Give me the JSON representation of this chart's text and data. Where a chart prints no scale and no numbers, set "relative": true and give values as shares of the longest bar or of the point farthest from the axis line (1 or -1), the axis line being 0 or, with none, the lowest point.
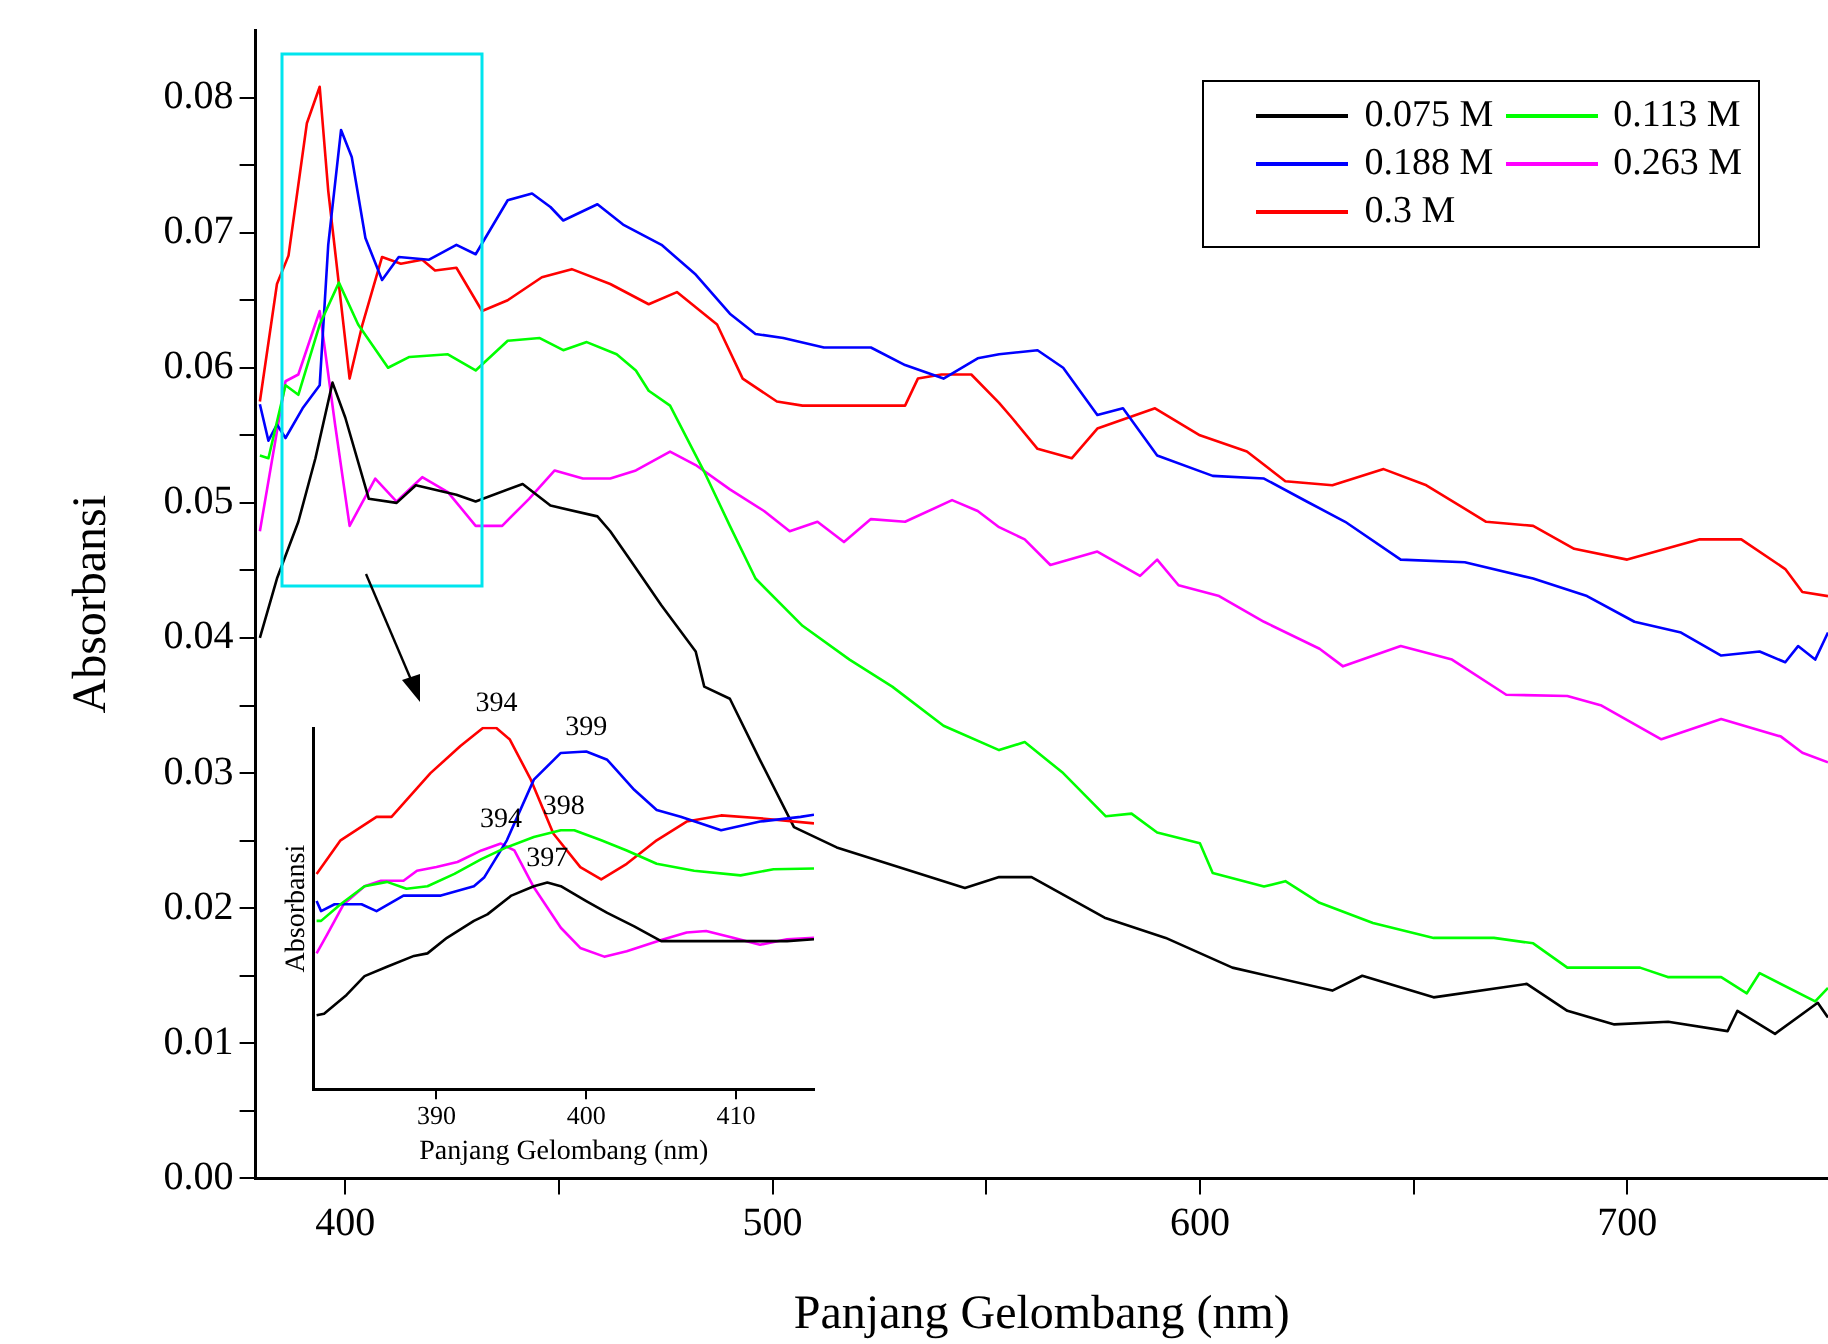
{
  "chart_data": [
    {
      "type": "line",
      "xlabel": "Panjang Gelombang (nm)",
      "ylabel": "Absorbansi",
      "xlim": [
        379,
        747
      ],
      "xticks": [
        400,
        {
          "value": 450,
          "label": null
        },
        500,
        {
          "value": 550,
          "label": null
        },
        600,
        {
          "value": 650,
          "label": null
        },
        700
      ],
      "ylim": [
        0,
        0.085
      ],
      "yticks": [
        {
          "value": 0,
          "label": "0.00"
        },
        {
          "value": 0.005,
          "label": null
        },
        0.01,
        {
          "value": 0.015,
          "label": null
        },
        0.02,
        {
          "value": 0.025,
          "label": null
        },
        0.03,
        {
          "value": 0.035,
          "label": null
        },
        0.04,
        {
          "value": 0.045,
          "label": null
        },
        0.05,
        {
          "value": 0.055,
          "label": null
        },
        0.06,
        {
          "value": 0.065,
          "label": null
        },
        0.07,
        {
          "value": 0.075,
          "label": null
        },
        0.08
      ],
      "grid": false,
      "legend": "top right",
      "marker": "none",
      "line_style": "solid",
      "series": [
        {
          "name": "0.075 M",
          "color": "#000000",
          "x": [
            380,
            384,
            389,
            393,
            397,
            400,
            405.5,
            412,
            416.5,
            426,
            430.5,
            441.5,
            448,
            459,
            462,
            466.6,
            474,
            482,
            484,
            490,
            497,
            505,
            515,
            530,
            545,
            553,
            560.6,
            577.7,
            592,
            607.6,
            631,
            638,
            654.7,
            676.5,
            686,
            697,
            709.6,
            723.5,
            725.8,
            734.6,
            744.6,
            747
          ],
          "values": [
            0.04,
            0.0444,
            0.0486,
            0.0533,
            0.0589,
            0.0563,
            0.0503,
            0.05,
            0.0513,
            0.0506,
            0.0501,
            0.0514,
            0.0498,
            0.049,
            0.0479,
            0.0458,
            0.0424,
            0.039,
            0.0364,
            0.0355,
            0.031,
            0.026,
            0.0245,
            0.023,
            0.0215,
            0.0223,
            0.0223,
            0.0193,
            0.0178,
            0.0156,
            0.0139,
            0.015,
            0.0134,
            0.0144,
            0.0124,
            0.0114,
            0.0116,
            0.0109,
            0.0124,
            0.0107,
            0.013,
            0.0119
          ]
        },
        {
          "name": "0.113 M",
          "color": "#00ff00",
          "x": [
            380,
            382,
            386,
            389,
            394,
            398.5,
            403,
            410,
            415,
            424,
            430.5,
            438,
            445.5,
            451,
            456.5,
            463.5,
            468,
            471,
            476,
            484,
            490,
            496,
            507,
            518,
            528,
            540,
            553,
            559,
            568,
            578,
            584,
            590,
            600,
            603,
            615,
            620,
            628,
            640.5,
            654.7,
            668.8,
            678,
            686,
            703,
            709.5,
            722,
            728,
            731,
            744,
            747
          ],
          "values": [
            0.0535,
            0.0533,
            0.0587,
            0.058,
            0.0632,
            0.0663,
            0.0632,
            0.06,
            0.0608,
            0.061,
            0.0598,
            0.062,
            0.0622,
            0.0613,
            0.0619,
            0.061,
            0.0598,
            0.0583,
            0.0572,
            0.0523,
            0.0483,
            0.0444,
            0.0409,
            0.0384,
            0.0364,
            0.0335,
            0.0317,
            0.0323,
            0.03,
            0.0268,
            0.027,
            0.0256,
            0.0248,
            0.0226,
            0.0216,
            0.022,
            0.0204,
            0.0189,
            0.0178,
            0.0178,
            0.0174,
            0.0156,
            0.0156,
            0.0149,
            0.0149,
            0.0137,
            0.0152,
            0.0131,
            0.0141
          ]
        },
        {
          "name": "0.188 M",
          "color": "#0000ff",
          "x": [
            380,
            382,
            384,
            386,
            390,
            394,
            396,
            399,
            401.5,
            404.7,
            408.6,
            412.5,
            419.6,
            426,
            430.5,
            438,
            443.7,
            448,
            451,
            459,
            465,
            474,
            482,
            490,
            496,
            502.5,
            512,
            523,
            531,
            540,
            548,
            553,
            562,
            568,
            576,
            582,
            590,
            603,
            615,
            625,
            634,
            647,
            662,
            678,
            690.6,
            701.7,
            712.6,
            722,
            731,
            737,
            740,
            744,
            747
          ],
          "values": [
            0.0573,
            0.0546,
            0.0558,
            0.0548,
            0.057,
            0.0587,
            0.0691,
            0.0776,
            0.0756,
            0.0696,
            0.0665,
            0.0682,
            0.068,
            0.0691,
            0.0684,
            0.0724,
            0.0729,
            0.0719,
            0.0709,
            0.0721,
            0.0706,
            0.0691,
            0.0669,
            0.064,
            0.0625,
            0.0622,
            0.0615,
            0.0615,
            0.0602,
            0.0592,
            0.0607,
            0.061,
            0.0613,
            0.06,
            0.0565,
            0.057,
            0.0535,
            0.052,
            0.0518,
            0.0501,
            0.0486,
            0.0458,
            0.0456,
            0.0444,
            0.0431,
            0.0412,
            0.0404,
            0.0387,
            0.039,
            0.0382,
            0.0394,
            0.0384,
            0.0404
          ]
        },
        {
          "name": "0.263 M",
          "color": "#ff00ff",
          "x": [
            380,
            386,
            389,
            394,
            397.6,
            401,
            407,
            412,
            418,
            424,
            430.5,
            436.7,
            443,
            449,
            455.6,
            462,
            468,
            476,
            482,
            490,
            498,
            504,
            510.5,
            516.7,
            523,
            531,
            542,
            548,
            553,
            559,
            565,
            576,
            586,
            590,
            595,
            604.5,
            615,
            628,
            633.5,
            647,
            659,
            671.7,
            686,
            694,
            708,
            722,
            736,
            741,
            747
          ],
          "values": [
            0.0479,
            0.059,
            0.0595,
            0.0642,
            0.0558,
            0.0483,
            0.0518,
            0.0501,
            0.0519,
            0.0508,
            0.0483,
            0.0483,
            0.0503,
            0.0524,
            0.0518,
            0.0518,
            0.0524,
            0.0538,
            0.0528,
            0.051,
            0.0494,
            0.0479,
            0.0486,
            0.0471,
            0.0488,
            0.0486,
            0.0502,
            0.0494,
            0.0482,
            0.0473,
            0.0454,
            0.0464,
            0.0446,
            0.0458,
            0.0439,
            0.0431,
            0.0412,
            0.0392,
            0.0379,
            0.0394,
            0.0384,
            0.0358,
            0.0357,
            0.035,
            0.0325,
            0.034,
            0.0327,
            0.0315,
            0.0308
          ]
        },
        {
          "name": "0.3 M",
          "color": "#ff0000",
          "x": [
            380,
            384,
            386.7,
            391,
            394,
            396,
            401,
            404,
            408.6,
            413,
            418,
            421,
            426,
            432,
            438,
            446,
            453,
            462,
            471,
            477.6,
            487,
            493,
            501,
            507,
            523,
            531,
            534,
            539.5,
            546.5,
            553,
            556,
            562,
            570,
            576,
            589.5,
            600,
            611,
            620,
            631,
            643,
            653,
            667,
            678,
            687.6,
            700,
            717,
            726.7,
            737,
            741,
            747
          ],
          "values": [
            0.0575,
            0.0662,
            0.0683,
            0.0781,
            0.0808,
            0.0731,
            0.0592,
            0.0632,
            0.0682,
            0.0677,
            0.068,
            0.0672,
            0.0674,
            0.0642,
            0.065,
            0.0667,
            0.0673,
            0.0662,
            0.0647,
            0.0656,
            0.0632,
            0.0592,
            0.0575,
            0.0572,
            0.0572,
            0.0572,
            0.0592,
            0.0595,
            0.0595,
            0.0574,
            0.0563,
            0.054,
            0.0533,
            0.0555,
            0.057,
            0.055,
            0.0538,
            0.0516,
            0.0513,
            0.0525,
            0.0513,
            0.0486,
            0.0483,
            0.0466,
            0.0458,
            0.0473,
            0.0473,
            0.0451,
            0.0434,
            0.0431
          ]
        }
      ]
    },
    {
      "type": "line",
      "xlabel": "Panjang Gelombang (nm)",
      "ylabel": "Absorbansi",
      "relative": true,
      "xlim": [
        381.8,
        415.2
      ],
      "xticks": [
        390,
        400,
        410
      ],
      "tick_labels": "x",
      "grid": false,
      "marker": "none",
      "line_style": "solid",
      "annotations": [
        {
          "text": "394",
          "x": 394,
          "y": 1
        },
        {
          "text": "399",
          "x": 400,
          "y": 0.935
        },
        {
          "text": "398",
          "x": 398.5,
          "y": 0.717
        },
        {
          "text": "394",
          "x": 394.3,
          "y": 0.68
        },
        {
          "text": "397",
          "x": 397.4,
          "y": 0.572
        }
      ],
      "series": [
        {
          "color": "#000000",
          "x": [
            382,
            382.5,
            384,
            385.2,
            386.7,
            388.5,
            389.4,
            390.7,
            392.5,
            393.4,
            395,
            396.5,
            397.4,
            398.3,
            400,
            401.4,
            403.2,
            405,
            407.2,
            410.8,
            413.4,
            415.2
          ],
          "values": [
            0.205,
            0.209,
            0.261,
            0.313,
            0.339,
            0.369,
            0.376,
            0.419,
            0.466,
            0.484,
            0.536,
            0.562,
            0.572,
            0.562,
            0.521,
            0.488,
            0.451,
            0.41,
            0.41,
            0.41,
            0.41,
            0.415
          ]
        },
        {
          "color": "#00ff00",
          "x": [
            382,
            382.3,
            383.6,
            385.2,
            386.7,
            388,
            389.4,
            391.2,
            393,
            394.7,
            396.5,
            398.3,
            399.2,
            401,
            402.7,
            404.7,
            407.2,
            410.3,
            412.5,
            415.2
          ],
          "values": [
            0.466,
            0.466,
            0.512,
            0.562,
            0.574,
            0.555,
            0.562,
            0.596,
            0.637,
            0.67,
            0.698,
            0.717,
            0.717,
            0.689,
            0.661,
            0.624,
            0.605,
            0.592,
            0.609,
            0.611
          ]
        },
        {
          "color": "#0000ff",
          "x": [
            382,
            382.3,
            383.2,
            385,
            386,
            387.8,
            390.3,
            392.5,
            393.2,
            394.7,
            396.5,
            398.3,
            400,
            401.4,
            403.2,
            404.7,
            406.3,
            409,
            411.6,
            414.3,
            415.2
          ],
          "values": [
            0.521,
            0.493,
            0.512,
            0.512,
            0.493,
            0.536,
            0.536,
            0.562,
            0.587,
            0.689,
            0.857,
            0.931,
            0.935,
            0.912,
            0.829,
            0.773,
            0.754,
            0.717,
            0.741,
            0.754,
            0.76
          ]
        },
        {
          "color": "#ff00ff",
          "x": [
            382,
            382.7,
            383.8,
            385.2,
            386.3,
            387.8,
            388.7,
            390,
            391.4,
            393,
            394.3,
            395.2,
            396.5,
            398.3,
            399.6,
            401.2,
            402.7,
            405,
            406.7,
            408,
            409.8,
            411.6,
            413.4,
            415.2
          ],
          "values": [
            0.376,
            0.428,
            0.512,
            0.562,
            0.577,
            0.577,
            0.605,
            0.615,
            0.629,
            0.661,
            0.68,
            0.661,
            0.559,
            0.447,
            0.391,
            0.367,
            0.382,
            0.413,
            0.434,
            0.438,
            0.419,
            0.4,
            0.415,
            0.419
          ]
        },
        {
          "color": "#ff0000",
          "x": [
            382,
            383.6,
            386,
            387,
            389.6,
            391.6,
            393.1,
            394,
            394.9,
            396.3,
            397.8,
            399.6,
            401,
            402.7,
            404.7,
            406.7,
            409,
            411.6,
            415.2
          ],
          "values": [
            0.596,
            0.689,
            0.754,
            0.754,
            0.875,
            0.95,
            1,
            1,
            0.968,
            0.857,
            0.708,
            0.615,
            0.581,
            0.624,
            0.689,
            0.741,
            0.758,
            0.75,
            0.736
          ]
        }
      ]
    }
  ]
}
